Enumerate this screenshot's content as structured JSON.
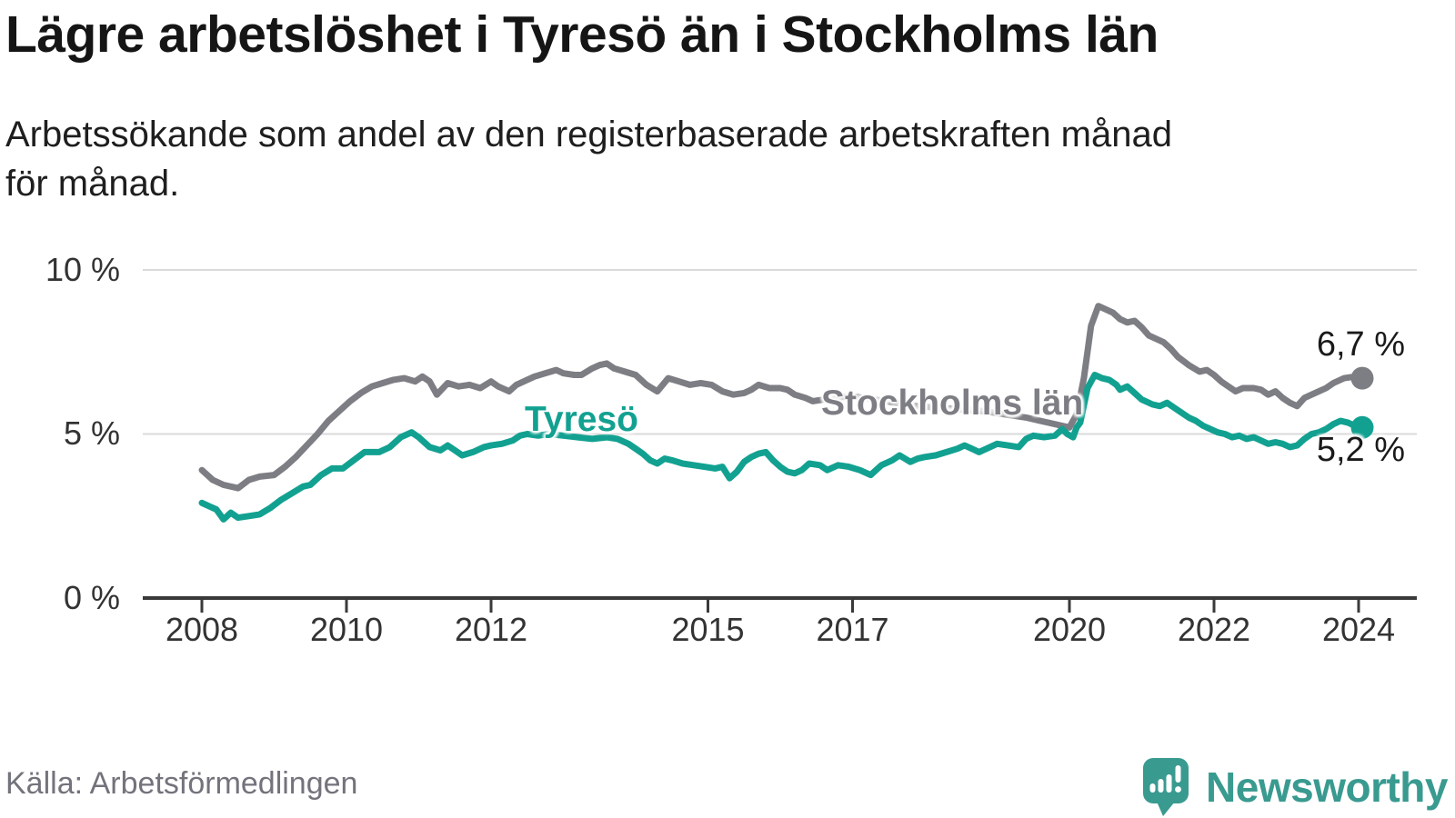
{
  "header": {
    "title": "Lägre arbetslöshet i Tyresö än i Stockholms län",
    "subtitle_lines": [
      "Arbetssökande som andel av den registerbaserade arbetskraften månad",
      "för månad."
    ]
  },
  "source": {
    "label": "Källa: Arbetsförmedlingen"
  },
  "logo": {
    "wordmark": "Newsworthy",
    "icon": "speech-bubble-bar-chart-exclamation",
    "color": "#399a90"
  },
  "theme": {
    "background": "#ffffff",
    "grid_color": "#dadada",
    "axis_color": "#3a3a3a",
    "text_color": "#333333",
    "title_color": "#151515",
    "source_color": "#73737c"
  },
  "chart_data": {
    "type": "line",
    "title": "Lägre arbetslöshet i Tyresö än i Stockholms län",
    "subtitle": "Arbetssökande som andel av den registerbaserade arbetskraften månad för månad.",
    "xlabel": "",
    "ylabel": "",
    "unit": "%",
    "grid": "horizontal",
    "legend_position": "inline-labels",
    "x_axis": {
      "ticks": [
        "2008",
        "2010",
        "2012",
        "2015",
        "2017",
        "2020",
        "2022",
        "2024"
      ],
      "range": [
        2007.6,
        2024.8
      ]
    },
    "y_axis": {
      "tick_labels": [
        "0 %",
        "5 %",
        "10 %"
      ],
      "tick_values": [
        0,
        5,
        10
      ],
      "range": [
        0,
        10
      ]
    },
    "series": [
      {
        "name": "Stockholms län",
        "color": "#7d7d84",
        "end_label": "6,7 %",
        "end_value": 6.7,
        "points": [
          [
            2008.0,
            3.9
          ],
          [
            2008.15,
            3.6
          ],
          [
            2008.3,
            3.45
          ],
          [
            2008.5,
            3.35
          ],
          [
            2008.65,
            3.6
          ],
          [
            2008.8,
            3.7
          ],
          [
            2009.0,
            3.75
          ],
          [
            2009.15,
            4.0
          ],
          [
            2009.3,
            4.3
          ],
          [
            2009.45,
            4.65
          ],
          [
            2009.6,
            5.0
          ],
          [
            2009.75,
            5.4
          ],
          [
            2009.9,
            5.7
          ],
          [
            2010.05,
            6.0
          ],
          [
            2010.2,
            6.25
          ],
          [
            2010.35,
            6.45
          ],
          [
            2010.5,
            6.55
          ],
          [
            2010.65,
            6.65
          ],
          [
            2010.8,
            6.7
          ],
          [
            2010.95,
            6.6
          ],
          [
            2011.05,
            6.75
          ],
          [
            2011.15,
            6.6
          ],
          [
            2011.25,
            6.2
          ],
          [
            2011.4,
            6.55
          ],
          [
            2011.55,
            6.45
          ],
          [
            2011.7,
            6.5
          ],
          [
            2011.85,
            6.4
          ],
          [
            2012.0,
            6.6
          ],
          [
            2012.1,
            6.45
          ],
          [
            2012.25,
            6.3
          ],
          [
            2012.35,
            6.5
          ],
          [
            2012.5,
            6.65
          ],
          [
            2012.6,
            6.75
          ],
          [
            2012.75,
            6.85
          ],
          [
            2012.9,
            6.95
          ],
          [
            2013.0,
            6.85
          ],
          [
            2013.15,
            6.8
          ],
          [
            2013.25,
            6.8
          ],
          [
            2013.4,
            7.0
          ],
          [
            2013.5,
            7.1
          ],
          [
            2013.6,
            7.15
          ],
          [
            2013.7,
            7.0
          ],
          [
            2013.85,
            6.9
          ],
          [
            2014.0,
            6.8
          ],
          [
            2014.15,
            6.5
          ],
          [
            2014.3,
            6.3
          ],
          [
            2014.45,
            6.7
          ],
          [
            2014.6,
            6.6
          ],
          [
            2014.75,
            6.5
          ],
          [
            2014.9,
            6.55
          ],
          [
            2015.05,
            6.5
          ],
          [
            2015.2,
            6.3
          ],
          [
            2015.35,
            6.2
          ],
          [
            2015.5,
            6.25
          ],
          [
            2015.6,
            6.35
          ],
          [
            2015.7,
            6.5
          ],
          [
            2015.85,
            6.4
          ],
          [
            2016.0,
            6.4
          ],
          [
            2016.1,
            6.35
          ],
          [
            2016.2,
            6.2
          ],
          [
            2016.35,
            6.1
          ],
          [
            2016.45,
            6.0
          ],
          [
            2016.6,
            6.05
          ],
          [
            2016.7,
            6.1
          ],
          [
            2017.0,
            6.15
          ],
          [
            2017.3,
            6.05
          ],
          [
            2017.6,
            5.95
          ],
          [
            2017.9,
            5.85
          ],
          [
            2018.2,
            5.8
          ],
          [
            2018.5,
            5.75
          ],
          [
            2018.8,
            5.7
          ],
          [
            2019.1,
            5.6
          ],
          [
            2019.4,
            5.5
          ],
          [
            2019.7,
            5.35
          ],
          [
            2019.9,
            5.25
          ],
          [
            2020.0,
            5.2
          ],
          [
            2020.1,
            5.6
          ],
          [
            2020.2,
            6.7
          ],
          [
            2020.3,
            8.3
          ],
          [
            2020.4,
            8.9
          ],
          [
            2020.5,
            8.8
          ],
          [
            2020.6,
            8.7
          ],
          [
            2020.7,
            8.5
          ],
          [
            2020.8,
            8.4
          ],
          [
            2020.9,
            8.45
          ],
          [
            2021.0,
            8.25
          ],
          [
            2021.1,
            8.0
          ],
          [
            2021.2,
            7.9
          ],
          [
            2021.3,
            7.8
          ],
          [
            2021.4,
            7.6
          ],
          [
            2021.5,
            7.35
          ],
          [
            2021.65,
            7.1
          ],
          [
            2021.8,
            6.9
          ],
          [
            2021.9,
            6.95
          ],
          [
            2022.0,
            6.8
          ],
          [
            2022.1,
            6.6
          ],
          [
            2022.2,
            6.45
          ],
          [
            2022.3,
            6.3
          ],
          [
            2022.4,
            6.4
          ],
          [
            2022.55,
            6.4
          ],
          [
            2022.65,
            6.35
          ],
          [
            2022.75,
            6.2
          ],
          [
            2022.85,
            6.3
          ],
          [
            2022.95,
            6.1
          ],
          [
            2023.05,
            5.95
          ],
          [
            2023.15,
            5.85
          ],
          [
            2023.25,
            6.1
          ],
          [
            2023.35,
            6.2
          ],
          [
            2023.45,
            6.3
          ],
          [
            2023.55,
            6.4
          ],
          [
            2023.65,
            6.55
          ],
          [
            2023.8,
            6.7
          ],
          [
            2023.95,
            6.75
          ],
          [
            2024.05,
            6.7
          ]
        ]
      },
      {
        "name": "Tyresö",
        "color": "#12a191",
        "end_label": "5,2 %",
        "end_value": 5.2,
        "points": [
          [
            2008.0,
            2.9
          ],
          [
            2008.1,
            2.8
          ],
          [
            2008.2,
            2.7
          ],
          [
            2008.3,
            2.4
          ],
          [
            2008.4,
            2.6
          ],
          [
            2008.5,
            2.45
          ],
          [
            2008.65,
            2.5
          ],
          [
            2008.8,
            2.55
          ],
          [
            2008.95,
            2.75
          ],
          [
            2009.1,
            3.0
          ],
          [
            2009.25,
            3.2
          ],
          [
            2009.4,
            3.4
          ],
          [
            2009.5,
            3.45
          ],
          [
            2009.65,
            3.75
          ],
          [
            2009.8,
            3.95
          ],
          [
            2009.95,
            3.95
          ],
          [
            2010.1,
            4.2
          ],
          [
            2010.25,
            4.45
          ],
          [
            2010.45,
            4.45
          ],
          [
            2010.6,
            4.6
          ],
          [
            2010.75,
            4.9
          ],
          [
            2010.9,
            5.05
          ],
          [
            2011.0,
            4.9
          ],
          [
            2011.15,
            4.6
          ],
          [
            2011.3,
            4.5
          ],
          [
            2011.4,
            4.65
          ],
          [
            2011.5,
            4.5
          ],
          [
            2011.6,
            4.35
          ],
          [
            2011.75,
            4.45
          ],
          [
            2011.9,
            4.6
          ],
          [
            2012.0,
            4.65
          ],
          [
            2012.15,
            4.7
          ],
          [
            2012.3,
            4.8
          ],
          [
            2012.4,
            4.95
          ],
          [
            2012.5,
            5.0
          ],
          [
            2012.65,
            4.95
          ],
          [
            2012.8,
            5.0
          ],
          [
            2013.0,
            4.95
          ],
          [
            2013.2,
            4.9
          ],
          [
            2013.4,
            4.85
          ],
          [
            2013.6,
            4.9
          ],
          [
            2013.75,
            4.85
          ],
          [
            2013.9,
            4.7
          ],
          [
            2014.0,
            4.55
          ],
          [
            2014.1,
            4.4
          ],
          [
            2014.2,
            4.2
          ],
          [
            2014.3,
            4.1
          ],
          [
            2014.4,
            4.25
          ],
          [
            2014.5,
            4.2
          ],
          [
            2014.65,
            4.1
          ],
          [
            2014.8,
            4.05
          ],
          [
            2014.95,
            4.0
          ],
          [
            2015.1,
            3.95
          ],
          [
            2015.2,
            4.0
          ],
          [
            2015.3,
            3.65
          ],
          [
            2015.4,
            3.85
          ],
          [
            2015.5,
            4.15
          ],
          [
            2015.6,
            4.3
          ],
          [
            2015.7,
            4.4
          ],
          [
            2015.8,
            4.45
          ],
          [
            2015.9,
            4.2
          ],
          [
            2016.0,
            4.0
          ],
          [
            2016.1,
            3.85
          ],
          [
            2016.2,
            3.8
          ],
          [
            2016.3,
            3.9
          ],
          [
            2016.4,
            4.1
          ],
          [
            2016.55,
            4.05
          ],
          [
            2016.65,
            3.9
          ],
          [
            2016.8,
            4.05
          ],
          [
            2016.95,
            4.0
          ],
          [
            2017.1,
            3.9
          ],
          [
            2017.25,
            3.75
          ],
          [
            2017.4,
            4.05
          ],
          [
            2017.55,
            4.2
          ],
          [
            2017.65,
            4.35
          ],
          [
            2017.8,
            4.15
          ],
          [
            2017.9,
            4.25
          ],
          [
            2018.0,
            4.3
          ],
          [
            2018.15,
            4.35
          ],
          [
            2018.3,
            4.45
          ],
          [
            2018.45,
            4.55
          ],
          [
            2018.55,
            4.65
          ],
          [
            2018.65,
            4.55
          ],
          [
            2018.75,
            4.45
          ],
          [
            2018.9,
            4.6
          ],
          [
            2019.0,
            4.7
          ],
          [
            2019.15,
            4.65
          ],
          [
            2019.3,
            4.6
          ],
          [
            2019.4,
            4.85
          ],
          [
            2019.5,
            4.95
          ],
          [
            2019.65,
            4.9
          ],
          [
            2019.8,
            4.95
          ],
          [
            2019.9,
            5.15
          ],
          [
            2019.97,
            5.0
          ],
          [
            2020.05,
            4.9
          ],
          [
            2020.1,
            5.2
          ],
          [
            2020.15,
            5.35
          ],
          [
            2020.25,
            6.4
          ],
          [
            2020.35,
            6.8
          ],
          [
            2020.45,
            6.7
          ],
          [
            2020.55,
            6.65
          ],
          [
            2020.65,
            6.5
          ],
          [
            2020.7,
            6.35
          ],
          [
            2020.8,
            6.45
          ],
          [
            2020.9,
            6.25
          ],
          [
            2021.0,
            6.05
          ],
          [
            2021.15,
            5.9
          ],
          [
            2021.25,
            5.85
          ],
          [
            2021.35,
            5.95
          ],
          [
            2021.45,
            5.8
          ],
          [
            2021.55,
            5.65
          ],
          [
            2021.65,
            5.5
          ],
          [
            2021.75,
            5.4
          ],
          [
            2021.85,
            5.25
          ],
          [
            2021.95,
            5.15
          ],
          [
            2022.05,
            5.05
          ],
          [
            2022.15,
            5.0
          ],
          [
            2022.25,
            4.9
          ],
          [
            2022.35,
            4.95
          ],
          [
            2022.45,
            4.85
          ],
          [
            2022.55,
            4.9
          ],
          [
            2022.65,
            4.8
          ],
          [
            2022.75,
            4.7
          ],
          [
            2022.85,
            4.75
          ],
          [
            2022.95,
            4.7
          ],
          [
            2023.05,
            4.6
          ],
          [
            2023.15,
            4.65
          ],
          [
            2023.25,
            4.85
          ],
          [
            2023.35,
            5.0
          ],
          [
            2023.45,
            5.05
          ],
          [
            2023.55,
            5.15
          ],
          [
            2023.65,
            5.3
          ],
          [
            2023.75,
            5.4
          ],
          [
            2023.85,
            5.35
          ],
          [
            2023.95,
            5.25
          ],
          [
            2024.05,
            5.2
          ]
        ]
      }
    ]
  }
}
